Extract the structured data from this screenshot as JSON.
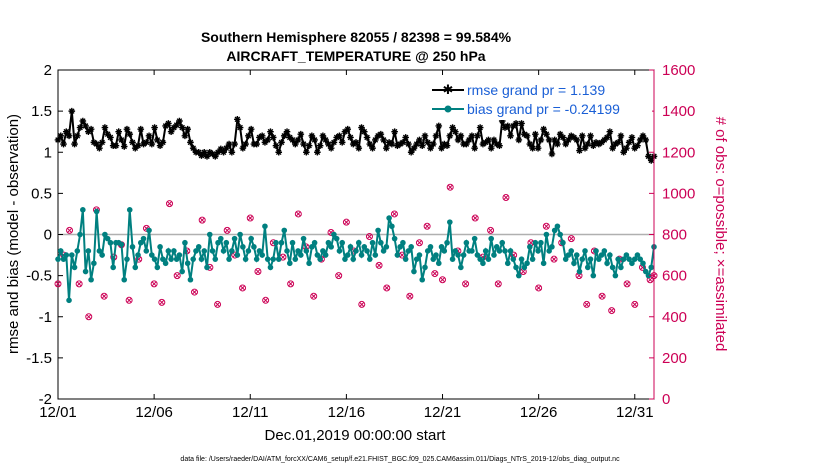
{
  "chart_data": {
    "type": "line",
    "title": "Southern Hemisphere 82055 / 82398 = 99.584%",
    "subtitle": "AIRCRAFT_TEMPERATURE @ 250 hPa",
    "xlabel": "Dec.01,2019 00:00:00 start",
    "ylabel": "rmse and bias (model - observation)",
    "y2label": "# of obs: o=possible; ×=assimilated",
    "footnote": "data file: /Users/raeder/DAI/ATM_forcXX/CAM6_setup/f.e21.FHIST_BGC.f09_025.CAM6assim.011/Diags_NTrS_2019-12/obs_diag_output.nc",
    "xlim": [
      0,
      31
    ],
    "ylim": [
      -2,
      2
    ],
    "y2lim": [
      0,
      1600
    ],
    "xticks": [
      "12/01",
      "12/06",
      "12/11",
      "12/16",
      "12/21",
      "12/26",
      "12/31"
    ],
    "xtick_values": [
      0,
      5,
      10,
      15,
      20,
      25,
      30
    ],
    "yticks": [
      "-2",
      "-1.5",
      "-1",
      "-0.5",
      "0",
      "0.5",
      "1",
      "1.5",
      "2"
    ],
    "y2ticks": [
      "0",
      "200",
      "400",
      "600",
      "800",
      "1000",
      "1200",
      "1400",
      "1600"
    ],
    "zero_line": 0,
    "colors": {
      "rmse": "#000000",
      "bias": "#008080",
      "obs": "#cc0055",
      "legend_text": "#1a5fd6",
      "zero_line": "#b0b0b0"
    },
    "series": [
      {
        "name": "rmse grand pr = 1.139",
        "axis": "left",
        "marker": "star",
        "values": [
          1.15,
          1.2,
          1.1,
          1.25,
          1.2,
          1.5,
          1.1,
          1.2,
          1.3,
          1.38,
          1.32,
          1.25,
          1.28,
          1.12,
          1.1,
          1.05,
          1.12,
          1.3,
          1.22,
          1.18,
          1.08,
          1.08,
          1.25,
          1.15,
          1.07,
          1.28,
          1.22,
          1.12,
          1.05,
          1.08,
          1.28,
          1.1,
          1.12,
          1.2,
          1.1,
          1.3,
          1.15,
          1.08,
          1.12,
          1.32,
          1.35,
          1.25,
          1.3,
          1.33,
          1.38,
          1.3,
          1.2,
          1.28,
          1.12,
          1.05,
          1.0,
          1.0,
          0.96,
          1.0,
          0.95,
          1.0,
          0.98,
          0.95,
          1.0,
          1.04,
          1.0,
          1.05,
          1.1,
          1.0,
          1.1,
          1.4,
          1.3,
          1.05,
          1.1,
          1.2,
          1.28,
          1.1,
          1.1,
          1.18,
          1.2,
          1.12,
          1.15,
          1.25,
          1.18,
          1.08,
          1.0,
          1.12,
          1.2,
          1.25,
          1.18,
          1.15,
          1.1,
          1.15,
          1.22,
          1.1,
          1.0,
          1.08,
          1.2,
          1.15,
          1.0,
          1.08,
          1.2,
          1.15,
          1.1,
          1.05,
          1.12,
          1.18,
          1.2,
          1.12,
          1.25,
          1.28,
          1.18,
          1.1,
          1.12,
          1.05,
          1.3,
          1.25,
          1.18,
          1.1,
          1.05,
          1.15,
          1.2,
          1.22,
          1.15,
          1.05,
          1.12,
          1.1,
          1.25,
          1.08,
          1.1,
          1.12,
          1.18,
          1.1,
          1.0,
          1.05,
          1.1,
          1.15,
          1.08,
          1.2,
          1.12,
          1.05,
          1.1,
          1.2,
          1.32,
          1.05,
          1.1,
          1.08,
          1.2,
          1.3,
          1.25,
          1.15,
          1.2,
          1.1,
          1.1,
          1.15,
          1.2,
          1.05,
          1.2,
          1.3,
          1.1,
          1.12,
          1.15,
          1.05,
          1.15,
          1.1,
          1.08,
          1.38,
          1.3,
          1.32,
          1.2,
          1.32,
          1.35,
          1.15,
          1.35,
          1.22,
          1.2,
          1.1,
          1.05,
          1.22,
          1.05,
          1.15,
          1.28,
          1.22,
          1.15,
          0.98,
          1.15,
          1.1,
          1.22,
          1.18,
          1.1,
          1.15,
          1.2,
          1.18,
          1.15,
          1.02,
          1.2,
          1.05,
          1.1,
          1.2,
          1.08,
          1.12,
          1.1,
          1.12,
          1.15,
          1.18,
          1.25,
          1.05,
          1.1,
          1.12,
          1.2,
          1.0,
          1.05,
          1.12,
          1.18,
          1.05,
          1.08,
          1.15,
          1.2,
          1.15,
          0.95,
          0.9,
          0.95
        ]
      },
      {
        "name": "bias grand pr = -0.24199",
        "axis": "left",
        "marker": "circle",
        "values": [
          -0.3,
          -0.2,
          -0.3,
          -0.25,
          -0.8,
          -0.25,
          -0.4,
          -0.2,
          0.0,
          0.3,
          -0.45,
          -0.2,
          -0.55,
          -0.35,
          0.28,
          -0.2,
          -0.25,
          0.0,
          -0.05,
          -0.1,
          -0.4,
          -0.1,
          -0.1,
          -0.12,
          -0.55,
          -0.3,
          0.3,
          -0.15,
          -0.4,
          -0.25,
          -0.1,
          -0.05,
          -0.2,
          0.05,
          -0.25,
          -0.3,
          -0.4,
          -0.15,
          -0.3,
          -0.35,
          -0.2,
          -0.3,
          -0.2,
          -0.3,
          -0.25,
          -0.45,
          -0.1,
          -0.35,
          -0.55,
          -0.3,
          -0.2,
          -0.15,
          -0.3,
          -0.2,
          -0.4,
          0.0,
          -0.2,
          -0.3,
          -0.1,
          -0.05,
          -0.2,
          -0.1,
          -0.3,
          -0.2,
          -0.05,
          -0.25,
          0.0,
          -0.15,
          -0.3,
          -0.2,
          -0.05,
          -0.15,
          -0.3,
          -0.2,
          -0.25,
          0.1,
          -0.3,
          -0.4,
          -0.3,
          -0.1,
          -0.3,
          -0.1,
          0.05,
          -0.2,
          -0.35,
          -0.1,
          -0.3,
          -0.2,
          -0.25,
          -0.05,
          -0.2,
          -0.35,
          -0.15,
          -0.1,
          -0.25,
          -0.3,
          -0.2,
          -0.25,
          -0.1,
          -0.15,
          0.0,
          -0.05,
          -0.2,
          -0.1,
          -0.3,
          -0.25,
          -0.15,
          -0.3,
          -0.2,
          -0.1,
          -0.25,
          -0.15,
          -0.2,
          -0.3,
          -0.1,
          -0.25,
          0.05,
          -0.1,
          -0.2,
          -0.15,
          0.2,
          0.1,
          -0.05,
          -0.25,
          -0.15,
          -0.1,
          -0.3,
          -0.2,
          -0.15,
          -0.45,
          -0.3,
          -0.25,
          -0.55,
          -0.4,
          -0.2,
          -0.15,
          -0.3,
          -0.25,
          -0.35,
          -0.15,
          -0.2,
          -0.1,
          0.15,
          -0.3,
          -0.2,
          -0.25,
          -0.4,
          -0.25,
          -0.1,
          -0.2,
          -0.2,
          -0.05,
          -0.25,
          -0.3,
          -0.35,
          -0.2,
          -0.3,
          -0.05,
          -0.25,
          -0.15,
          -0.2,
          -0.1,
          -0.2,
          -0.35,
          -0.2,
          -0.3,
          -0.4,
          -0.5,
          -0.3,
          -0.4,
          -0.35,
          -0.15,
          -0.3,
          -0.1,
          -0.2,
          -0.1,
          -0.35,
          0.0,
          -0.2,
          -0.15,
          0.05,
          0.1,
          0.0,
          -0.1,
          -0.3,
          -0.25,
          -0.2,
          -0.35,
          -0.25,
          -0.45,
          -0.3,
          -0.2,
          -0.4,
          -0.3,
          -0.5,
          -0.2,
          -0.3,
          -0.25,
          -0.2,
          -0.35,
          -0.25,
          -0.4,
          -0.5,
          -0.3,
          -0.4,
          -0.3,
          -0.25,
          -0.3,
          -0.35,
          -0.3,
          -0.25,
          -0.3,
          -0.35,
          -0.45,
          -0.5,
          -0.4,
          -0.15
        ]
      }
    ],
    "obs_counts": {
      "axis": "right",
      "marker": "circle-with-x",
      "t": [
        0.0,
        0.3,
        0.6,
        1.1,
        1.6,
        2.0,
        2.4,
        2.9,
        3.3,
        3.7,
        4.2,
        4.6,
        5.0,
        5.4,
        5.8,
        6.2,
        6.7,
        7.1,
        7.5,
        7.9,
        8.3,
        8.8,
        9.2,
        9.6,
        10.0,
        10.4,
        10.8,
        11.2,
        11.7,
        12.1,
        12.5,
        12.9,
        13.3,
        13.7,
        14.2,
        14.6,
        15.0,
        15.4,
        15.8,
        16.2,
        16.7,
        17.1,
        17.5,
        17.9,
        18.3,
        18.8,
        19.2,
        19.6,
        20.0,
        20.4,
        20.8,
        21.2,
        21.7,
        22.1,
        22.5,
        22.9,
        23.3,
        23.7,
        24.2,
        24.6,
        25.0,
        25.4,
        25.8,
        26.2,
        26.7,
        27.1,
        27.5,
        27.9,
        28.3,
        28.8,
        29.2,
        29.6,
        30.0,
        30.4,
        30.8,
        31.0
      ],
      "values": [
        560,
        700,
        820,
        560,
        400,
        920,
        500,
        690,
        750,
        480,
        680,
        830,
        560,
        470,
        950,
        600,
        720,
        520,
        870,
        640,
        460,
        820,
        700,
        540,
        880,
        620,
        480,
        760,
        690,
        560,
        900,
        740,
        500,
        680,
        810,
        600,
        860,
        720,
        460,
        790,
        650,
        540,
        900,
        700,
        500,
        760,
        840,
        610,
        580,
        1030,
        720,
        560,
        880,
        690,
        820,
        560,
        980,
        700,
        620,
        760,
        540,
        840,
        680,
        760,
        780,
        600,
        460,
        720,
        500,
        430,
        680,
        560,
        460,
        640,
        580,
        600
      ]
    },
    "legend": {
      "location": "top-right",
      "entries": [
        "rmse grand pr = 1.139",
        "bias grand pr = -0.24199"
      ]
    }
  }
}
